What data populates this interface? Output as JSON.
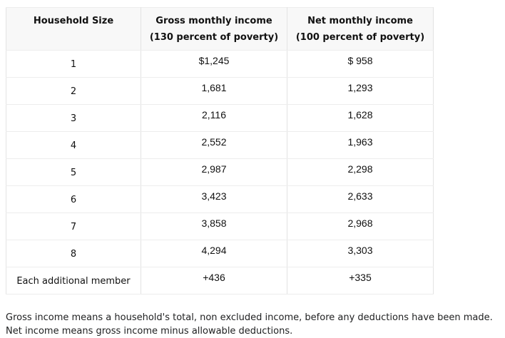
{
  "table": {
    "header": {
      "col1": {
        "title": "Household Size",
        "subtitle": ""
      },
      "col2": {
        "title": "Gross monthly income",
        "subtitle": "(130 percent of poverty)"
      },
      "col3": {
        "title": "Net monthly income",
        "subtitle": "(100 percent of poverty)"
      }
    },
    "rows": [
      {
        "size": "1",
        "gross": "$1,245",
        "net": "$ 958"
      },
      {
        "size": "2",
        "gross": "1,681",
        "net": "1,293"
      },
      {
        "size": "3",
        "gross": "2,116",
        "net": "1,628"
      },
      {
        "size": "4",
        "gross": "2,552",
        "net": "1,963"
      },
      {
        "size": "5",
        "gross": "2,987",
        "net": "2,298"
      },
      {
        "size": "6",
        "gross": "3,423",
        "net": "2,633"
      },
      {
        "size": "7",
        "gross": "3,858",
        "net": "2,968"
      },
      {
        "size": "8",
        "gross": "4,294",
        "net": "3,303"
      },
      {
        "size": "Each additional member",
        "gross": "+436",
        "net": "+335"
      }
    ]
  },
  "chart_data": {
    "type": "table",
    "columns": [
      "Household Size",
      "Gross monthly income (130 percent of poverty)",
      "Net monthly income (100 percent of poverty)"
    ],
    "rows": [
      [
        "1",
        "$1,245",
        "$ 958"
      ],
      [
        "2",
        "1,681",
        "1,293"
      ],
      [
        "3",
        "2,116",
        "1,628"
      ],
      [
        "4",
        "2,552",
        "1,963"
      ],
      [
        "5",
        "2,987",
        "2,298"
      ],
      [
        "6",
        "3,423",
        "2,633"
      ],
      [
        "7",
        "3,858",
        "2,968"
      ],
      [
        "8",
        "4,294",
        "3,303"
      ],
      [
        "Each additional member",
        "+436",
        "+335"
      ]
    ]
  },
  "footnote": {
    "line1": "Gross income means a household's total, non excluded income, before any deductions have been made.",
    "line2": "Net income means gross income minus allowable deductions."
  },
  "colors": {
    "header_background": "#f8f8f8",
    "border_vertical": "#e3e3e3",
    "border_horizontal": "#ededed",
    "text": "#111111"
  }
}
